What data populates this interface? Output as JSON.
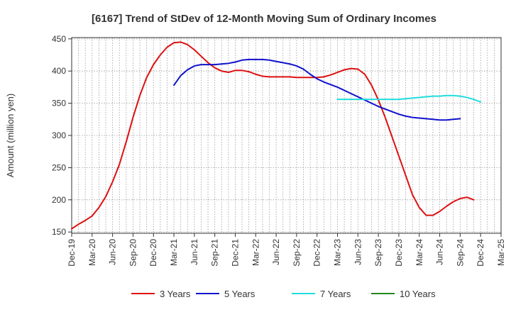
{
  "chart_data": {
    "type": "line",
    "title": "[6167]  Trend of StDev of 12-Month Moving Sum of Ordinary Incomes",
    "xlabel": "",
    "ylabel": "Amount (million yen)",
    "ylim": [
      148,
      452
    ],
    "yticks": [
      150,
      200,
      250,
      300,
      350,
      400,
      450
    ],
    "x_start": "Dec-19",
    "x_end": "Mar-25",
    "xticks": [
      "Dec-19",
      "Mar-20",
      "Jun-20",
      "Sep-20",
      "Dec-20",
      "Mar-21",
      "Jun-21",
      "Sep-21",
      "Dec-21",
      "Mar-22",
      "Jun-22",
      "Sep-22",
      "Dec-22",
      "Mar-23",
      "Jun-23",
      "Sep-23",
      "Dec-23",
      "Mar-24",
      "Jun-24",
      "Sep-24",
      "Dec-24",
      "Mar-25"
    ],
    "grid": true,
    "legend_position": "bottom",
    "series": [
      {
        "name": "3 Years",
        "color": "#dd1111",
        "start_index": 0,
        "values": [
          155,
          162,
          168,
          175,
          188,
          205,
          228,
          255,
          290,
          328,
          362,
          390,
          410,
          425,
          437,
          444,
          445,
          441,
          433,
          423,
          413,
          405,
          400,
          398,
          401,
          401,
          399,
          395,
          392,
          391,
          391,
          391,
          391,
          390,
          390,
          390,
          390,
          391,
          394,
          398,
          402,
          404,
          403,
          395,
          378,
          355,
          328,
          298,
          268,
          238,
          208,
          188,
          176,
          176,
          182,
          190,
          197,
          202,
          204,
          200
        ]
      },
      {
        "name": "5 Years",
        "color": "#1111cc",
        "start_index": 15,
        "values": [
          378,
          393,
          402,
          408,
          410,
          410,
          410,
          411,
          412,
          414,
          417,
          418,
          418,
          418,
          417,
          415,
          413,
          411,
          408,
          403,
          395,
          388,
          383,
          379,
          375,
          370,
          365,
          360,
          355,
          350,
          345,
          341,
          337,
          333,
          330,
          328,
          327,
          326,
          325,
          324,
          324,
          325,
          326
        ]
      },
      {
        "name": "7 Years",
        "color": "#22dddd",
        "start_index": 39,
        "values": [
          356,
          356,
          356,
          356,
          356,
          356,
          356,
          356,
          356,
          356,
          357,
          358,
          359,
          360,
          361,
          361,
          362,
          362,
          361,
          359,
          356,
          352
        ]
      },
      {
        "name": "10 Years",
        "color": "#228822",
        "start_index": 0,
        "values": []
      }
    ]
  }
}
